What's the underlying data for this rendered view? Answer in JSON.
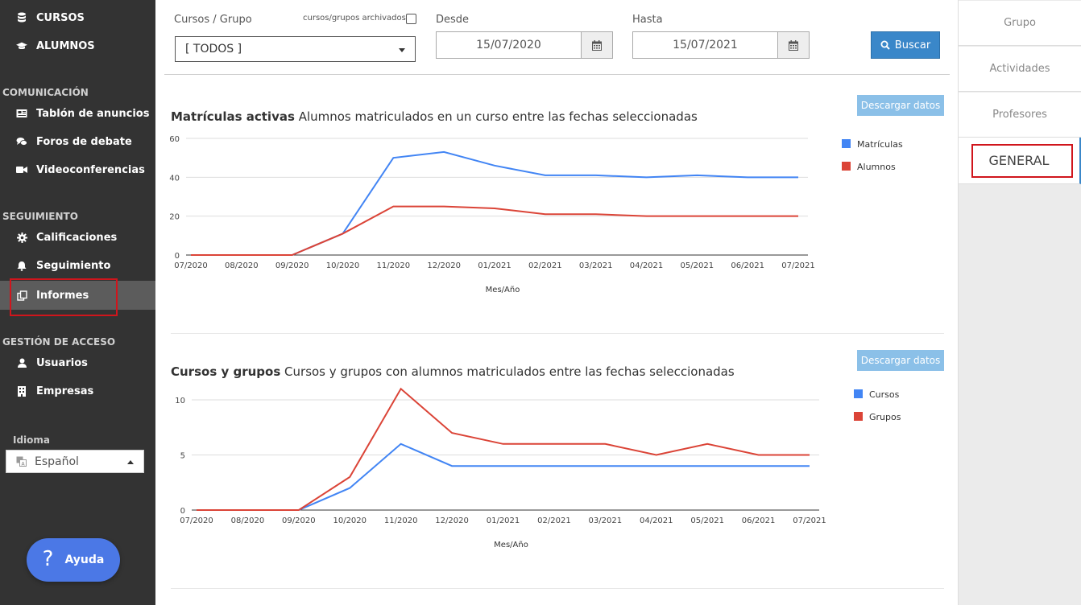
{
  "sidebar": {
    "top_items": [
      {
        "label": "CURSOS",
        "icon": "database-icon"
      },
      {
        "label": "ALUMNOS",
        "icon": "graduation-cap-icon"
      }
    ],
    "sections": [
      {
        "title": "COMUNICACIÓN",
        "items": [
          {
            "label": "Tablón de anuncios",
            "icon": "newspaper-icon"
          },
          {
            "label": "Foros de debate",
            "icon": "comments-icon"
          },
          {
            "label": "Videoconferencias",
            "icon": "video-camera-icon"
          }
        ]
      },
      {
        "title": "SEGUIMIENTO",
        "items": [
          {
            "label": "Calificaciones",
            "icon": "gear-icon"
          },
          {
            "label": "Seguimiento",
            "icon": "bell-icon"
          },
          {
            "label": "Informes",
            "icon": "copy-icon",
            "active": true
          }
        ]
      },
      {
        "title": "GESTIÓN DE ACCESO",
        "items": [
          {
            "label": "Usuarios",
            "icon": "user-icon"
          },
          {
            "label": "Empresas",
            "icon": "building-icon"
          }
        ]
      }
    ],
    "idioma_label": "Idioma",
    "language": "Español",
    "help_label": "Ayuda"
  },
  "filters": {
    "grupo_label": "Cursos / Grupo",
    "archivados_label": "cursos/grupos archivados",
    "grupo_value": "[ TODOS ]",
    "desde_label": "Desde",
    "desde_value": "15/07/2020",
    "hasta_label": "Hasta",
    "hasta_value": "15/07/2021",
    "buscar_label": "Buscar"
  },
  "charts": [
    {
      "title_bold": "Matrículas activas",
      "title_rest": "Alumnos matriculados en un curso entre las fechas seleccionadas",
      "download_label": "Descargar datos",
      "xlabel": "Mes/Año"
    },
    {
      "title_bold": "Cursos y grupos",
      "title_rest": "Cursos y grupos con alumnos matriculados entre las fechas seleccionadas",
      "download_label": "Descargar datos",
      "xlabel": "Mes/Año"
    }
  ],
  "chart_data": [
    {
      "type": "line",
      "title": "Matrículas activas Alumnos matriculados en un curso entre las fechas seleccionadas",
      "xlabel": "Mes/Año",
      "ylabel": "",
      "categories": [
        "07/2020",
        "08/2020",
        "09/2020",
        "10/2020",
        "11/2020",
        "12/2020",
        "01/2021",
        "02/2021",
        "03/2021",
        "04/2021",
        "05/2021",
        "06/2021",
        "07/2021"
      ],
      "ylim": [
        0,
        60
      ],
      "yticks": [
        0,
        20,
        40,
        60
      ],
      "grid": true,
      "legend": "right",
      "series": [
        {
          "name": "Matrículas",
          "color": "#4285f4",
          "values": [
            0,
            0,
            0,
            11,
            50,
            53,
            46,
            41,
            41,
            40,
            41,
            40,
            40
          ]
        },
        {
          "name": "Alumnos",
          "color": "#db4437",
          "values": [
            0,
            0,
            0,
            11,
            25,
            25,
            24,
            21,
            21,
            20,
            20,
            20,
            20
          ]
        }
      ]
    },
    {
      "type": "line",
      "title": "Cursos y grupos Cursos y grupos con alumnos matriculados entre las fechas seleccionadas",
      "xlabel": "Mes/Año",
      "ylabel": "",
      "categories": [
        "07/2020",
        "08/2020",
        "09/2020",
        "10/2020",
        "11/2020",
        "12/2020",
        "01/2021",
        "02/2021",
        "03/2021",
        "04/2021",
        "05/2021",
        "06/2021",
        "07/2021"
      ],
      "ylim": [
        0,
        10
      ],
      "yticks": [
        0,
        5,
        10
      ],
      "grid": true,
      "legend": "right",
      "series": [
        {
          "name": "Cursos",
          "color": "#4285f4",
          "values": [
            0,
            0,
            0,
            2,
            6,
            4,
            4,
            4,
            4,
            4,
            4,
            4,
            4
          ]
        },
        {
          "name": "Grupos",
          "color": "#db4437",
          "values": [
            0,
            0,
            0,
            3,
            11,
            7,
            6,
            6,
            6,
            5,
            6,
            5,
            5
          ]
        }
      ]
    }
  ],
  "right_tabs": [
    {
      "label": "Grupo"
    },
    {
      "label": "Actividades"
    },
    {
      "label": "Profesores"
    },
    {
      "label": "GENERAL",
      "active": true
    }
  ],
  "colors": {
    "highlight": "#d0151c",
    "primary": "#3a87c9",
    "sidebar_bg": "#333333"
  }
}
